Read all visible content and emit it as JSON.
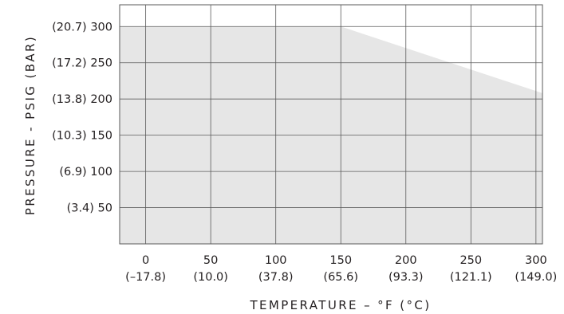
{
  "chart_data": {
    "type": "area",
    "title": "",
    "xlabel": "TEMPERATURE – °F (°C)",
    "ylabel": "PRESSURE - PSIG (BAR)",
    "x_ticks": [
      {
        "value": 0,
        "label": "0",
        "sublabel": "(–17.8)"
      },
      {
        "value": 50,
        "label": "50",
        "sublabel": "(10.0)"
      },
      {
        "value": 100,
        "label": "100",
        "sublabel": "(37.8)"
      },
      {
        "value": 150,
        "label": "150",
        "sublabel": "(65.6)"
      },
      {
        "value": 200,
        "label": "200",
        "sublabel": "(93.3)"
      },
      {
        "value": 250,
        "label": "250",
        "sublabel": "(121.1)"
      },
      {
        "value": 300,
        "label": "300",
        "sublabel": "(149.0)"
      }
    ],
    "y_ticks": [
      {
        "value": 50,
        "label": "(3.4) 50"
      },
      {
        "value": 100,
        "label": "(6.9) 100"
      },
      {
        "value": 150,
        "label": "(10.3) 150"
      },
      {
        "value": 200,
        "label": "(13.8) 200"
      },
      {
        "value": 250,
        "label": "(17.2) 250"
      },
      {
        "value": 300,
        "label": "(20.7) 300"
      }
    ],
    "xlim": [
      -20,
      305
    ],
    "ylim": [
      0,
      330
    ],
    "grid": true,
    "series": [
      {
        "points": [
          [
            -20,
            300
          ],
          [
            150,
            300
          ],
          [
            305,
            208
          ]
        ],
        "fill": "#e6e6e6"
      }
    ]
  }
}
